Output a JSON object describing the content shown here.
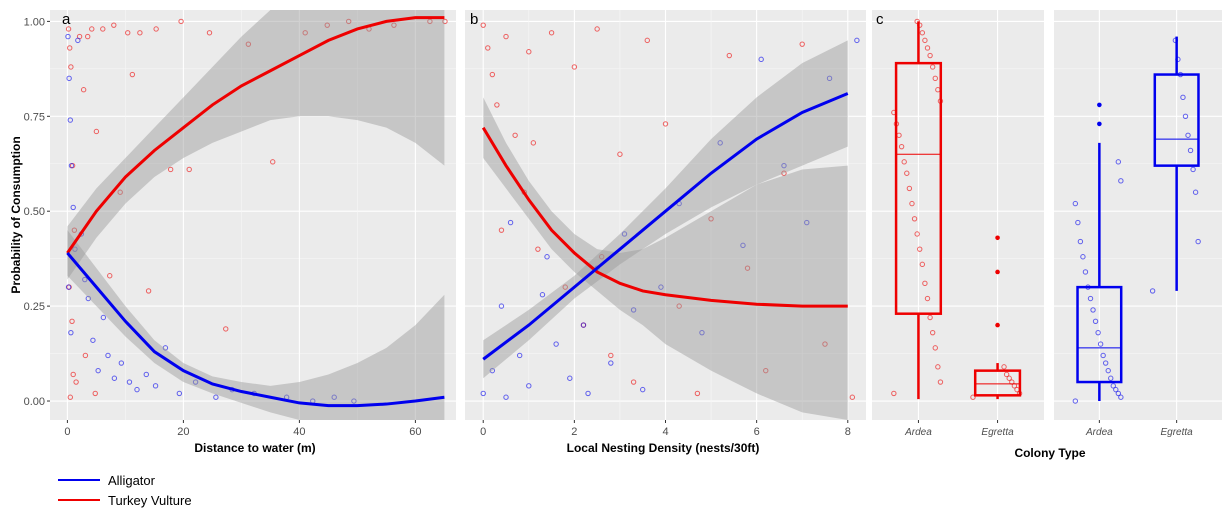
{
  "colors": {
    "alligator": "#0000ee",
    "vulture": "#ee0000",
    "band": "#999999",
    "panel_bg": "#ebebeb"
  },
  "legend": [
    {
      "key": "alligator",
      "label": "Alligator"
    },
    {
      "key": "vulture",
      "label": "Turkey Vulture"
    }
  ],
  "y_axis_title": "Probability of Consumption",
  "chart_data": [
    {
      "panel": "a",
      "type": "scatter",
      "xlabel": "Distance to water (m)",
      "ylabel": "Probability of Consumption",
      "xlim": [
        -3,
        67
      ],
      "ylim": [
        -0.05,
        1.03
      ],
      "xticks": [
        0,
        20,
        40,
        60
      ],
      "yticks": [
        0.0,
        0.25,
        0.5,
        0.75,
        1.0
      ],
      "ytick_labels": [
        "0.00",
        "0.25",
        "0.50",
        "0.75",
        "1.00"
      ],
      "series": [
        {
          "key": "vulture",
          "name": "Turkey Vulture",
          "fit_x": [
            0,
            5,
            10,
            15,
            20,
            25,
            30,
            35,
            40,
            45,
            50,
            55,
            60,
            65
          ],
          "fit_y": [
            0.39,
            0.5,
            0.59,
            0.66,
            0.72,
            0.78,
            0.83,
            0.87,
            0.91,
            0.95,
            0.98,
            1.0,
            1.01,
            1.01
          ],
          "ci_upper": [
            0.46,
            0.56,
            0.64,
            0.72,
            0.8,
            0.88,
            0.96,
            1.03,
            1.03,
            1.03,
            1.03,
            1.03,
            1.03,
            1.03
          ],
          "ci_lower": [
            0.32,
            0.43,
            0.52,
            0.59,
            0.64,
            0.68,
            0.71,
            0.74,
            0.75,
            0.75,
            0.74,
            0.72,
            0.68,
            0.62
          ],
          "points_x": [
            0.2,
            0.4,
            0.6,
            0.9,
            1.2,
            0.3,
            0.8,
            1.5,
            2.1,
            2.8,
            3.5,
            4.2,
            5.0,
            6.1,
            7.3,
            8.0,
            9.1,
            10.4,
            11.2,
            12.5,
            14.0,
            15.3,
            17.8,
            19.6,
            21.0,
            24.5,
            27.3,
            31.2,
            35.4,
            41.0,
            44.8,
            48.5,
            52.0,
            56.3,
            62.5,
            65.1,
            3.1,
            4.8,
            0.5,
            1.0
          ],
          "points_y": [
            0.98,
            0.93,
            0.88,
            0.62,
            0.45,
            0.3,
            0.21,
            0.05,
            0.96,
            0.82,
            0.96,
            0.98,
            0.71,
            0.98,
            0.33,
            0.99,
            0.55,
            0.97,
            0.86,
            0.97,
            0.29,
            0.98,
            0.61,
            1.0,
            0.61,
            0.97,
            0.19,
            0.94,
            0.63,
            0.97,
            0.99,
            1.0,
            0.98,
            0.99,
            1.0,
            1.0,
            0.12,
            0.02,
            0.01,
            0.07
          ]
        },
        {
          "key": "alligator",
          "name": "Alligator",
          "fit_x": [
            0,
            5,
            10,
            15,
            20,
            25,
            30,
            35,
            40,
            45,
            50,
            55,
            60,
            65
          ],
          "fit_y": [
            0.39,
            0.3,
            0.21,
            0.13,
            0.08,
            0.045,
            0.025,
            0.01,
            -0.005,
            -0.012,
            -0.012,
            -0.008,
            0.0,
            0.01
          ],
          "ci_upper": [
            0.45,
            0.35,
            0.25,
            0.16,
            0.1,
            0.065,
            0.05,
            0.04,
            0.05,
            0.07,
            0.1,
            0.14,
            0.2,
            0.28
          ],
          "ci_lower": [
            0.33,
            0.25,
            0.17,
            0.1,
            0.05,
            0.02,
            -0.005,
            -0.03,
            -0.05,
            -0.05,
            -0.05,
            -0.05,
            -0.05,
            -0.05
          ],
          "points_x": [
            0.1,
            0.3,
            0.5,
            0.7,
            1.0,
            1.3,
            0.2,
            0.6,
            1.8,
            2.4,
            3.0,
            3.6,
            4.4,
            5.3,
            6.2,
            7.0,
            8.1,
            9.3,
            10.7,
            12.0,
            13.6,
            15.2,
            16.9,
            19.3,
            22.1,
            25.6,
            28.4,
            32.2,
            37.8,
            42.3,
            46.0,
            49.4
          ],
          "points_y": [
            0.96,
            0.85,
            0.74,
            0.62,
            0.51,
            0.4,
            0.3,
            0.18,
            0.95,
            0.44,
            0.32,
            0.27,
            0.16,
            0.08,
            0.22,
            0.12,
            0.06,
            0.1,
            0.05,
            0.03,
            0.07,
            0.04,
            0.14,
            0.02,
            0.05,
            0.01,
            0.03,
            0.02,
            0.01,
            0.0,
            0.01,
            0.0
          ]
        }
      ]
    },
    {
      "panel": "b",
      "type": "scatter",
      "xlabel": "Local Nesting Density (nests/30ft)",
      "xlim": [
        -0.4,
        8.4
      ],
      "ylim": [
        -0.05,
        1.03
      ],
      "xticks": [
        0,
        2,
        4,
        6,
        8
      ],
      "series": [
        {
          "key": "vulture",
          "name": "Turkey Vulture",
          "fit_x": [
            0,
            0.5,
            1,
            1.5,
            2,
            2.5,
            3,
            3.5,
            4,
            5,
            6,
            7,
            8
          ],
          "fit_y": [
            0.72,
            0.62,
            0.53,
            0.45,
            0.39,
            0.34,
            0.31,
            0.29,
            0.28,
            0.265,
            0.255,
            0.25,
            0.25
          ],
          "ci_upper": [
            0.8,
            0.68,
            0.58,
            0.5,
            0.44,
            0.4,
            0.39,
            0.4,
            0.43,
            0.5,
            0.57,
            0.61,
            0.62
          ],
          "ci_lower": [
            0.64,
            0.56,
            0.48,
            0.4,
            0.34,
            0.29,
            0.24,
            0.2,
            0.15,
            0.08,
            0.02,
            -0.03,
            -0.05
          ],
          "points_x": [
            0.0,
            0.1,
            0.2,
            0.3,
            0.5,
            0.7,
            0.9,
            1.0,
            1.2,
            1.5,
            1.8,
            2.0,
            2.2,
            2.5,
            2.8,
            3.0,
            3.3,
            3.6,
            4.0,
            4.3,
            4.7,
            5.0,
            5.4,
            5.8,
            6.2,
            6.6,
            7.0,
            7.5,
            8.1,
            0.4,
            1.1,
            2.6
          ],
          "points_y": [
            0.99,
            0.93,
            0.86,
            0.78,
            0.96,
            0.7,
            0.55,
            0.92,
            0.4,
            0.97,
            0.3,
            0.88,
            0.2,
            0.98,
            0.12,
            0.65,
            0.05,
            0.95,
            0.73,
            0.25,
            0.02,
            0.48,
            0.91,
            0.35,
            0.08,
            0.6,
            0.94,
            0.15,
            0.01,
            0.45,
            0.68,
            0.38
          ]
        },
        {
          "key": "alligator",
          "name": "Alligator",
          "fit_x": [
            0,
            1,
            2,
            3,
            4,
            5,
            6,
            7,
            8
          ],
          "fit_y": [
            0.11,
            0.2,
            0.3,
            0.4,
            0.5,
            0.6,
            0.69,
            0.76,
            0.81
          ],
          "ci_upper": [
            0.16,
            0.24,
            0.33,
            0.44,
            0.56,
            0.69,
            0.8,
            0.89,
            0.95
          ],
          "ci_lower": [
            0.06,
            0.16,
            0.27,
            0.36,
            0.44,
            0.51,
            0.57,
            0.62,
            0.67
          ],
          "points_x": [
            0.0,
            0.2,
            0.4,
            0.6,
            0.8,
            1.0,
            1.3,
            1.6,
            1.9,
            2.2,
            2.5,
            2.8,
            3.1,
            3.5,
            3.9,
            4.3,
            4.8,
            5.2,
            5.7,
            6.1,
            6.6,
            7.1,
            7.6,
            8.2,
            0.5,
            1.4,
            2.3,
            3.3
          ],
          "points_y": [
            0.02,
            0.08,
            0.25,
            0.47,
            0.12,
            0.04,
            0.28,
            0.15,
            0.06,
            0.2,
            0.35,
            0.1,
            0.44,
            0.03,
            0.3,
            0.52,
            0.18,
            0.68,
            0.41,
            0.9,
            0.62,
            0.47,
            0.85,
            0.95,
            0.01,
            0.38,
            0.02,
            0.24
          ]
        }
      ]
    },
    {
      "panel": "c",
      "type": "box",
      "xlabel": "Colony Type",
      "categories": [
        "Ardea",
        "Egretta"
      ],
      "ylim": [
        -0.05,
        1.03
      ],
      "facets": [
        {
          "key": "vulture",
          "boxes": [
            {
              "category": "Ardea",
              "whisker_low": 0.005,
              "q1": 0.23,
              "median": 0.65,
              "q3": 0.89,
              "whisker_high": 1.0,
              "outliers": []
            },
            {
              "category": "Egretta",
              "whisker_low": 0.005,
              "q1": 0.015,
              "median": 0.045,
              "q3": 0.08,
              "whisker_high": 0.1,
              "outliers": [
                0.2,
                0.34,
                0.43
              ]
            }
          ],
          "jitter_ardea": [
            0.02,
            0.05,
            0.09,
            0.14,
            0.18,
            0.22,
            0.27,
            0.31,
            0.36,
            0.4,
            0.44,
            0.48,
            0.52,
            0.56,
            0.6,
            0.63,
            0.67,
            0.7,
            0.73,
            0.76,
            0.79,
            0.82,
            0.85,
            0.88,
            0.91,
            0.93,
            0.95,
            0.97,
            0.99,
            1.0
          ],
          "jitter_egretta": [
            0.01,
            0.02,
            0.03,
            0.04,
            0.05,
            0.06,
            0.07,
            0.09
          ]
        },
        {
          "key": "alligator",
          "boxes": [
            {
              "category": "Ardea",
              "whisker_low": 0.0,
              "q1": 0.05,
              "median": 0.14,
              "q3": 0.3,
              "whisker_high": 0.68,
              "outliers": [
                0.73,
                0.78
              ]
            },
            {
              "category": "Egretta",
              "whisker_low": 0.29,
              "q1": 0.62,
              "median": 0.69,
              "q3": 0.86,
              "whisker_high": 0.96,
              "outliers": []
            }
          ],
          "jitter_ardea": [
            0.0,
            0.01,
            0.02,
            0.03,
            0.04,
            0.06,
            0.08,
            0.1,
            0.12,
            0.15,
            0.18,
            0.21,
            0.24,
            0.27,
            0.3,
            0.34,
            0.38,
            0.42,
            0.47,
            0.52,
            0.58,
            0.63
          ],
          "jitter_egretta": [
            0.29,
            0.42,
            0.55,
            0.61,
            0.66,
            0.7,
            0.75,
            0.8,
            0.86,
            0.9,
            0.95
          ]
        }
      ]
    }
  ]
}
